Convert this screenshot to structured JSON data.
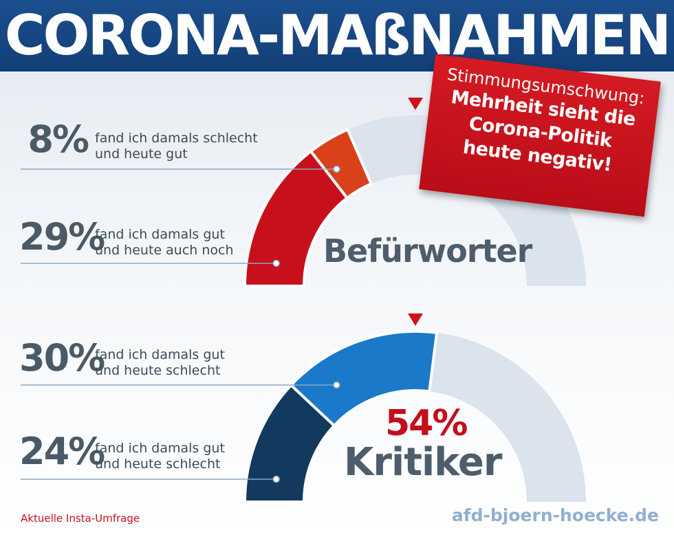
{
  "header": {
    "title": "CORONA-MAßNAHMEN"
  },
  "banner": {
    "subtitle": "Stimmungsumschwung:",
    "lines": [
      "Mehrheit sieht die",
      "Corona-Politik",
      "heute negativ!"
    ]
  },
  "chart_data": [
    {
      "type": "gauge",
      "label": "Befürworter",
      "max": 100,
      "series": [
        {
          "name": "fand ich damals gut und heute auch noch",
          "value": 29,
          "color": "#c8101c"
        },
        {
          "name": "fand ich damals schlecht und heute gut",
          "value": 8,
          "color": "#d9411a"
        }
      ],
      "rows": [
        {
          "pct": "8%",
          "line1": "fand ich damals schlecht",
          "line2": "und heute gut"
        },
        {
          "pct": "29%",
          "line1": "fand ich damals gut",
          "line2": "und heute auch noch"
        }
      ]
    },
    {
      "type": "gauge",
      "label": "Kritiker",
      "total": "54%",
      "max": 100,
      "series": [
        {
          "name": "fand ich damals gut und heute schlecht",
          "value": 24,
          "color": "#123a5e"
        },
        {
          "name": "fand ich damals gut und heute schlecht",
          "value": 30,
          "color": "#1a79c9"
        }
      ],
      "rows": [
        {
          "pct": "30%",
          "line1": "fand ich damals gut",
          "line2": "und heute schlecht"
        },
        {
          "pct": "24%",
          "line1": "fand ich damals gut",
          "line2": "und heute schlecht"
        }
      ]
    }
  ],
  "colors": {
    "track": "#dbe3ec",
    "marker": "#d0101c",
    "leader": "#8aa8c4",
    "text": "#4b5a67"
  },
  "footer": {
    "source": "Aktuelle Insta-Umfrage",
    "website": "afd-bjoern-hoecke.de"
  }
}
